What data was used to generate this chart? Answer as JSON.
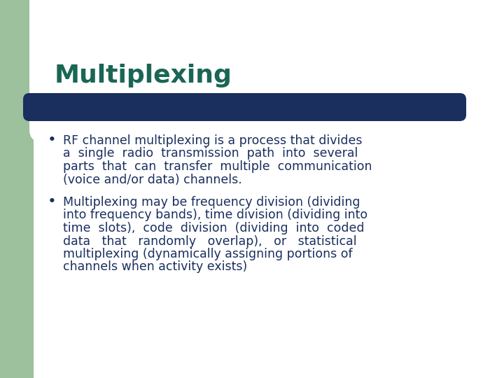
{
  "title": "Multiplexing",
  "title_color": "#1a6655",
  "title_fontsize": 26,
  "bg_color": "#ffffff",
  "left_bar_color": "#9dc09d",
  "top_deco_color": "#9dc09d",
  "divider_color": "#1a2f5e",
  "text_color": "#1a2f5e",
  "bullet_color": "#1a2f5e",
  "body_fontsize": 12.5,
  "bullet1_lines": [
    "RF channel multiplexing is a process that divides",
    "a  single  radio  transmission  path  into  several",
    "parts  that  can  transfer  multiple  communication",
    "(voice and/or data) channels."
  ],
  "bullet2_lines": [
    "Multiplexing may be frequency division (dividing",
    "into frequency bands), time division (dividing into",
    "time  slots),  code  division  (dividing  into  coded",
    "data   that   randomly   overlap),   or   statistical",
    "multiplexing (dynamically assigning portions of",
    "channels when activity exists)"
  ]
}
